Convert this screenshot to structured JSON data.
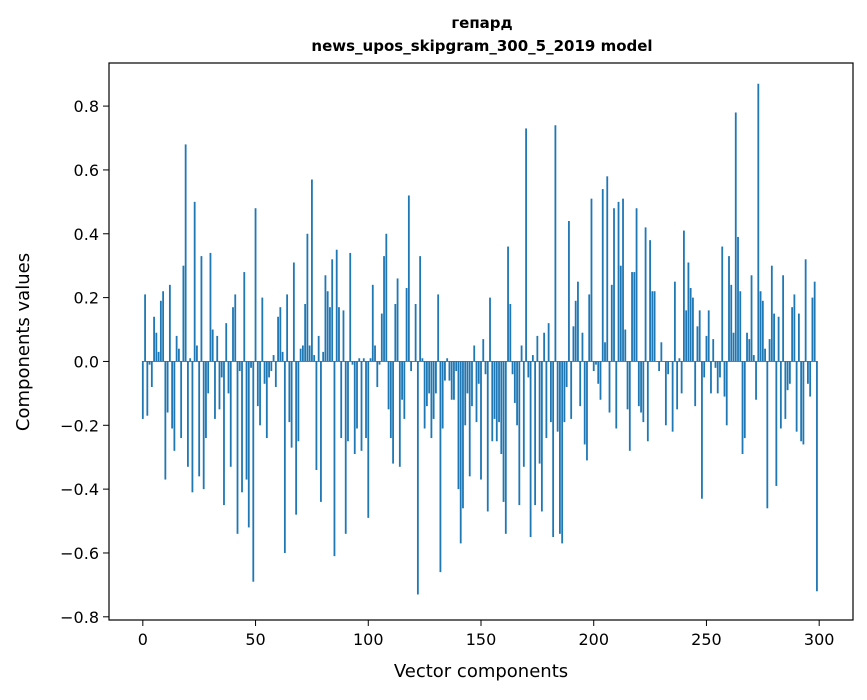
{
  "chart_data": {
    "type": "bar",
    "title": "гепард",
    "subtitle": "news_upos_skipgram_300_5_2019 model",
    "xlabel": "Vector components",
    "ylabel": "Components values",
    "xlim": [
      -15,
      315
    ],
    "ylim": [
      -0.81,
      0.935
    ],
    "xticks": [
      0,
      50,
      100,
      150,
      200,
      250,
      300
    ],
    "xtick_labels": [
      "0",
      "50",
      "100",
      "150",
      "200",
      "250",
      "300"
    ],
    "yticks": [
      -0.8,
      -0.6,
      -0.4,
      -0.2,
      0.0,
      0.2,
      0.4,
      0.6,
      0.8
    ],
    "ytick_labels": [
      "−0.8",
      "−0.6",
      "−0.4",
      "−0.2",
      "0.0",
      "0.2",
      "0.4",
      "0.6",
      "0.8"
    ],
    "grid": false,
    "bar_color": "#1f77b4",
    "x": [
      0,
      1,
      2,
      3,
      4,
      5,
      6,
      7,
      8,
      9,
      10,
      11,
      12,
      13,
      14,
      15,
      16,
      17,
      18,
      19,
      20,
      21,
      22,
      23,
      24,
      25,
      26,
      27,
      28,
      29,
      30,
      31,
      32,
      33,
      34,
      35,
      36,
      37,
      38,
      39,
      40,
      41,
      42,
      43,
      44,
      45,
      46,
      47,
      48,
      49,
      50,
      51,
      52,
      53,
      54,
      55,
      56,
      57,
      58,
      59,
      60,
      61,
      62,
      63,
      64,
      65,
      66,
      67,
      68,
      69,
      70,
      71,
      72,
      73,
      74,
      75,
      76,
      77,
      78,
      79,
      80,
      81,
      82,
      83,
      84,
      85,
      86,
      87,
      88,
      89,
      90,
      91,
      92,
      93,
      94,
      95,
      96,
      97,
      98,
      99,
      100,
      101,
      102,
      103,
      104,
      105,
      106,
      107,
      108,
      109,
      110,
      111,
      112,
      113,
      114,
      115,
      116,
      117,
      118,
      119,
      120,
      121,
      122,
      123,
      124,
      125,
      126,
      127,
      128,
      129,
      130,
      131,
      132,
      133,
      134,
      135,
      136,
      137,
      138,
      139,
      140,
      141,
      142,
      143,
      144,
      145,
      146,
      147,
      148,
      149,
      150,
      151,
      152,
      153,
      154,
      155,
      156,
      157,
      158,
      159,
      160,
      161,
      162,
      163,
      164,
      165,
      166,
      167,
      168,
      169,
      170,
      171,
      172,
      173,
      174,
      175,
      176,
      177,
      178,
      179,
      180,
      181,
      182,
      183,
      184,
      185,
      186,
      187,
      188,
      189,
      190,
      191,
      192,
      193,
      194,
      195,
      196,
      197,
      198,
      199,
      200,
      201,
      202,
      203,
      204,
      205,
      206,
      207,
      208,
      209,
      210,
      211,
      212,
      213,
      214,
      215,
      216,
      217,
      218,
      219,
      220,
      221,
      222,
      223,
      224,
      225,
      226,
      227,
      228,
      229,
      230,
      231,
      232,
      233,
      234,
      235,
      236,
      237,
      238,
      239,
      240,
      241,
      242,
      243,
      244,
      245,
      246,
      247,
      248,
      249,
      250,
      251,
      252,
      253,
      254,
      255,
      256,
      257,
      258,
      259,
      260,
      261,
      262,
      263,
      264,
      265,
      266,
      267,
      268,
      269,
      270,
      271,
      272,
      273,
      274,
      275,
      276,
      277,
      278,
      279,
      280,
      281,
      282,
      283,
      284,
      285,
      286,
      287,
      288,
      289,
      290,
      291,
      292,
      293,
      294,
      295,
      296,
      297,
      298,
      299
    ],
    "values": [
      -0.18,
      0.21,
      -0.17,
      -0.01,
      -0.08,
      0.14,
      0.09,
      0.03,
      0.19,
      0.22,
      -0.37,
      -0.16,
      0.24,
      -0.21,
      -0.28,
      0.08,
      0.04,
      -0.24,
      0.3,
      0.68,
      -0.33,
      0.01,
      -0.41,
      0.5,
      0.05,
      -0.36,
      0.33,
      -0.4,
      -0.24,
      -0.1,
      0.34,
      0.1,
      -0.18,
      0.08,
      -0.15,
      -0.05,
      -0.45,
      0.12,
      -0.1,
      -0.33,
      0.17,
      0.21,
      -0.54,
      -0.03,
      -0.41,
      0.28,
      -0.37,
      -0.52,
      -0.02,
      -0.69,
      0.48,
      -0.14,
      -0.2,
      0.2,
      -0.07,
      -0.24,
      -0.05,
      -0.03,
      0.02,
      -0.08,
      0.14,
      0.17,
      0.03,
      -0.6,
      0.21,
      -0.19,
      -0.27,
      0.31,
      -0.48,
      -0.25,
      0.04,
      0.05,
      0.18,
      0.4,
      0.05,
      0.57,
      0.02,
      -0.34,
      0.08,
      -0.44,
      0.03,
      0.27,
      0.22,
      0.17,
      0.32,
      -0.61,
      0.35,
      0.17,
      -0.24,
      0.16,
      -0.54,
      -0.25,
      0.34,
      -0.01,
      -0.29,
      -0.21,
      0.01,
      -0.28,
      0.01,
      -0.24,
      -0.49,
      0.01,
      0.24,
      0.05,
      -0.08,
      -0.01,
      0.15,
      0.33,
      0.4,
      -0.15,
      -0.24,
      -0.32,
      0.18,
      0.26,
      -0.33,
      -0.12,
      -0.18,
      0.23,
      0.52,
      -0.03,
      0.0,
      0.18,
      -0.73,
      0.33,
      0.01,
      -0.21,
      -0.14,
      -0.1,
      -0.24,
      -0.18,
      -0.1,
      0.21,
      -0.66,
      -0.21,
      -0.06,
      0.01,
      -0.06,
      -0.12,
      -0.12,
      -0.03,
      -0.4,
      -0.57,
      -0.46,
      -0.2,
      -0.1,
      -0.36,
      -0.14,
      0.05,
      -0.19,
      -0.07,
      -0.37,
      0.07,
      -0.04,
      -0.47,
      0.2,
      -0.25,
      -0.18,
      -0.25,
      -0.19,
      -0.29,
      -0.44,
      -0.54,
      0.36,
      0.18,
      -0.04,
      -0.13,
      -0.2,
      -0.45,
      0.05,
      -0.33,
      0.73,
      -0.05,
      -0.55,
      0.02,
      -0.45,
      0.08,
      -0.32,
      -0.47,
      0.09,
      -0.24,
      0.12,
      -0.19,
      -0.55,
      0.74,
      -0.22,
      -0.54,
      -0.57,
      -0.19,
      -0.08,
      0.44,
      -0.18,
      0.11,
      0.19,
      0.25,
      -0.14,
      0.09,
      -0.26,
      -0.31,
      0.21,
      0.51,
      -0.03,
      -0.01,
      -0.07,
      -0.12,
      0.54,
      0.06,
      0.58,
      -0.16,
      0.24,
      0.48,
      -0.21,
      0.5,
      0.3,
      0.51,
      0.1,
      -0.15,
      -0.28,
      0.28,
      0.28,
      0.48,
      -0.14,
      -0.16,
      -0.19,
      0.42,
      -0.25,
      0.38,
      0.22,
      0.22,
      0.0,
      -0.03,
      0.06,
      0.0,
      -0.2,
      -0.04,
      0.0,
      -0.22,
      0.25,
      -0.15,
      0.01,
      -0.1,
      0.41,
      0.16,
      0.31,
      0.23,
      0.2,
      -0.14,
      0.11,
      0.16,
      -0.43,
      -0.05,
      0.08,
      0.16,
      -0.1,
      0.07,
      -0.02,
      -0.1,
      -0.05,
      0.36,
      -0.11,
      -0.2,
      0.33,
      0.24,
      0.09,
      0.78,
      0.39,
      0.22,
      -0.29,
      -0.24,
      0.09,
      0.07,
      0.27,
      0.02,
      -0.12,
      0.87,
      0.22,
      0.19,
      0.04,
      -0.46,
      0.07,
      0.3,
      0.15,
      -0.39,
      0.14,
      -0.21,
      0.27,
      -0.18,
      -0.09,
      -0.07,
      0.17,
      0.21,
      -0.22,
      0.15,
      -0.25,
      -0.26,
      0.32,
      -0.07,
      -0.11,
      0.2,
      0.25,
      -0.72
    ]
  }
}
